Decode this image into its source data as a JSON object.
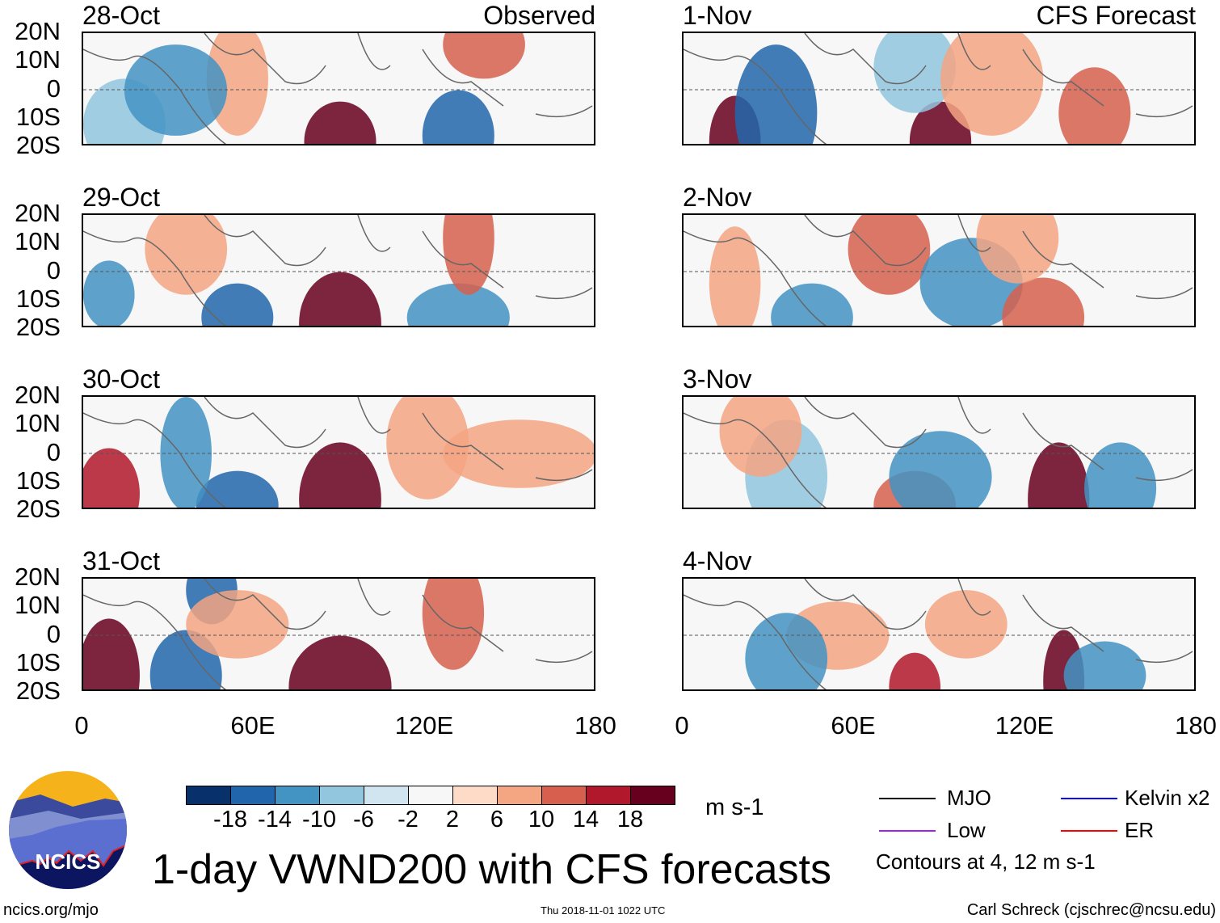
{
  "observed_label": "Observed",
  "forecast_label": "CFS Forecast",
  "observed_dates": [
    "28-Oct",
    "29-Oct",
    "30-Oct",
    "31-Oct"
  ],
  "forecast_dates": [
    "1-Nov",
    "2-Nov",
    "3-Nov",
    "4-Nov"
  ],
  "lat_ticks": [
    "20N",
    "10N",
    "0",
    "10S",
    "20S"
  ],
  "lon_ticks": [
    "0",
    "60E",
    "120E",
    "180"
  ],
  "colorbar": {
    "colors": [
      "#08306b",
      "#2166ac",
      "#4393c3",
      "#92c5de",
      "#d1e5f0",
      "#f7f7f7",
      "#fddbc7",
      "#f4a582",
      "#d6604d",
      "#b2182b",
      "#67001f"
    ],
    "labels": [
      "-18",
      "-14",
      "-10",
      "-6",
      "-2",
      "2",
      "6",
      "10",
      "14",
      "18"
    ],
    "units": "m s-1"
  },
  "legend": {
    "items": [
      {
        "label": "MJO",
        "color": "#000000"
      },
      {
        "label": "Kelvin x2",
        "color": "#0000ff"
      },
      {
        "label": "Low",
        "color": "#a020f0"
      },
      {
        "label": "ER",
        "color": "#ff0000"
      }
    ],
    "note": "Contours at 4, 12 m s-1"
  },
  "title": "1-day VWND200 with CFS forecasts",
  "logo_text": "NCICS",
  "footer": {
    "url": "ncics.org/mjo",
    "timestamp": "Thu 2018-11-01 1022 UTC",
    "author": "Carl Schreck (cjschrec@ncsu.edu)"
  }
}
